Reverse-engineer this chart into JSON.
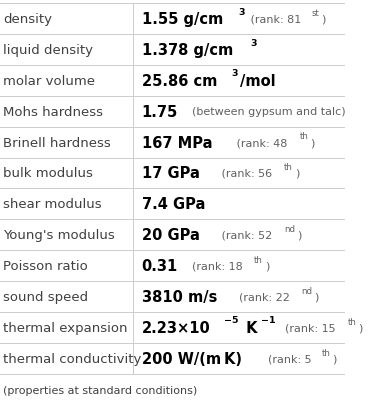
{
  "rows": [
    {
      "property": "density",
      "value_main": "1.55 g/cm",
      "sup1": "3",
      "rank_text": " (rank: 81",
      "rank_sup": "st",
      "rank_end": ")"
    },
    {
      "property": "liquid density",
      "value_main": "1.378 g/cm",
      "sup1": "3",
      "rank_text": "",
      "rank_sup": "",
      "rank_end": ""
    },
    {
      "property": "molar volume",
      "value_main": "25.86 cm",
      "sup1": "3",
      "rank_text": "/mol",
      "rank_sup": "",
      "rank_end": ""
    },
    {
      "property": "Mohs hardness",
      "value_main": "1.75",
      "sup1": "",
      "rank_text": "  (between gypsum and talc)",
      "rank_sup": "",
      "rank_end": ""
    },
    {
      "property": "Brinell hardness",
      "value_main": "167 MPa",
      "sup1": "",
      "rank_text": "   (rank: 48",
      "rank_sup": "th",
      "rank_end": ")"
    },
    {
      "property": "bulk modulus",
      "value_main": "17 GPa",
      "sup1": "",
      "rank_text": "   (rank: 56",
      "rank_sup": "th",
      "rank_end": ")"
    },
    {
      "property": "shear modulus",
      "value_main": "7.4 GPa",
      "sup1": "",
      "rank_text": "",
      "rank_sup": "",
      "rank_end": ""
    },
    {
      "property": "Young’s modulus",
      "value_main": "20 GPa",
      "sup1": "",
      "rank_text": "   (rank: 52",
      "rank_sup": "nd",
      "rank_end": ")"
    },
    {
      "property": "Poisson ratio",
      "value_main": "0.31",
      "sup1": "",
      "rank_text": "  (rank: 18",
      "rank_sup": "th",
      "rank_end": ")"
    },
    {
      "property": "sound speed",
      "value_main": "3810 m/s",
      "sup1": "",
      "rank_text": "  (rank: 22",
      "rank_sup": "nd",
      "rank_end": ")"
    },
    {
      "property": "thermal expansion",
      "value_main": "2.23×10",
      "sup1": "−5",
      "rank_text": " K",
      "rank_sup": "−1",
      "rank_end": "  (rank: 15",
      "rank_sup2": "th",
      "rank_end2": ")"
    },
    {
      "property": "thermal conductivity",
      "value_main": "200 W/(m K)",
      "sup1": "",
      "rank_text": "  (rank: 5",
      "rank_sup": "th",
      "rank_end": ")"
    }
  ],
  "footer": "(properties at standard conditions)",
  "col_split": 0.385,
  "bg_color": "#ffffff",
  "line_color": "#cccccc",
  "text_color_property": "#404040",
  "text_color_value": "#000000",
  "text_color_rank": "#606060",
  "font_size_property": 9.5,
  "font_size_value": 10.5,
  "font_size_rank": 8.0,
  "font_size_footer": 8.0
}
